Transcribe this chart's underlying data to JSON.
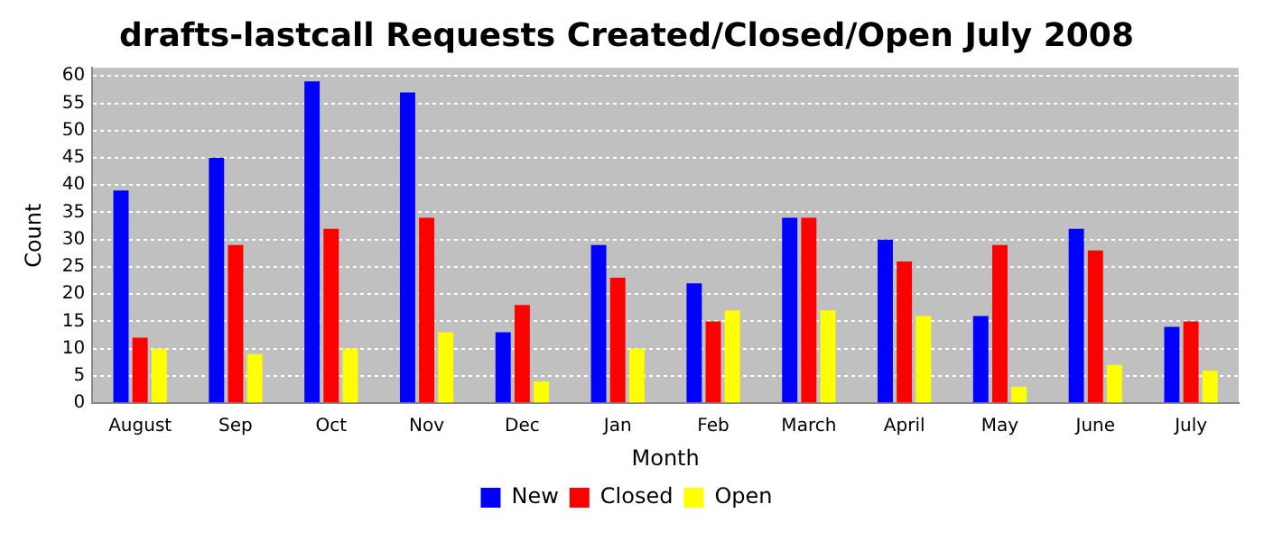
{
  "chart_data": {
    "type": "bar",
    "title": "drafts-lastcall Requests Created/Closed/Open July 2008",
    "xlabel": "Month",
    "ylabel": "Count",
    "categories": [
      "August",
      "Sep",
      "Oct",
      "Nov",
      "Dec",
      "Jan",
      "Feb",
      "March",
      "April",
      "May",
      "June",
      "July"
    ],
    "series": [
      {
        "name": "New",
        "color": "#0000ff",
        "values": [
          39,
          45,
          59,
          57,
          13,
          29,
          22,
          34,
          30,
          16,
          32,
          14
        ]
      },
      {
        "name": "Closed",
        "color": "#ff0000",
        "values": [
          12,
          29,
          32,
          34,
          18,
          23,
          15,
          34,
          26,
          29,
          28,
          15
        ]
      },
      {
        "name": "Open",
        "color": "#ffff00",
        "values": [
          10,
          9,
          10,
          13,
          4,
          10,
          17,
          17,
          16,
          3,
          7,
          6
        ]
      }
    ],
    "ylim": [
      0,
      61.5
    ],
    "yticks": [
      0,
      5,
      10,
      15,
      20,
      25,
      30,
      35,
      40,
      45,
      50,
      55,
      60
    ],
    "grid": "y",
    "legend": "bottom"
  }
}
